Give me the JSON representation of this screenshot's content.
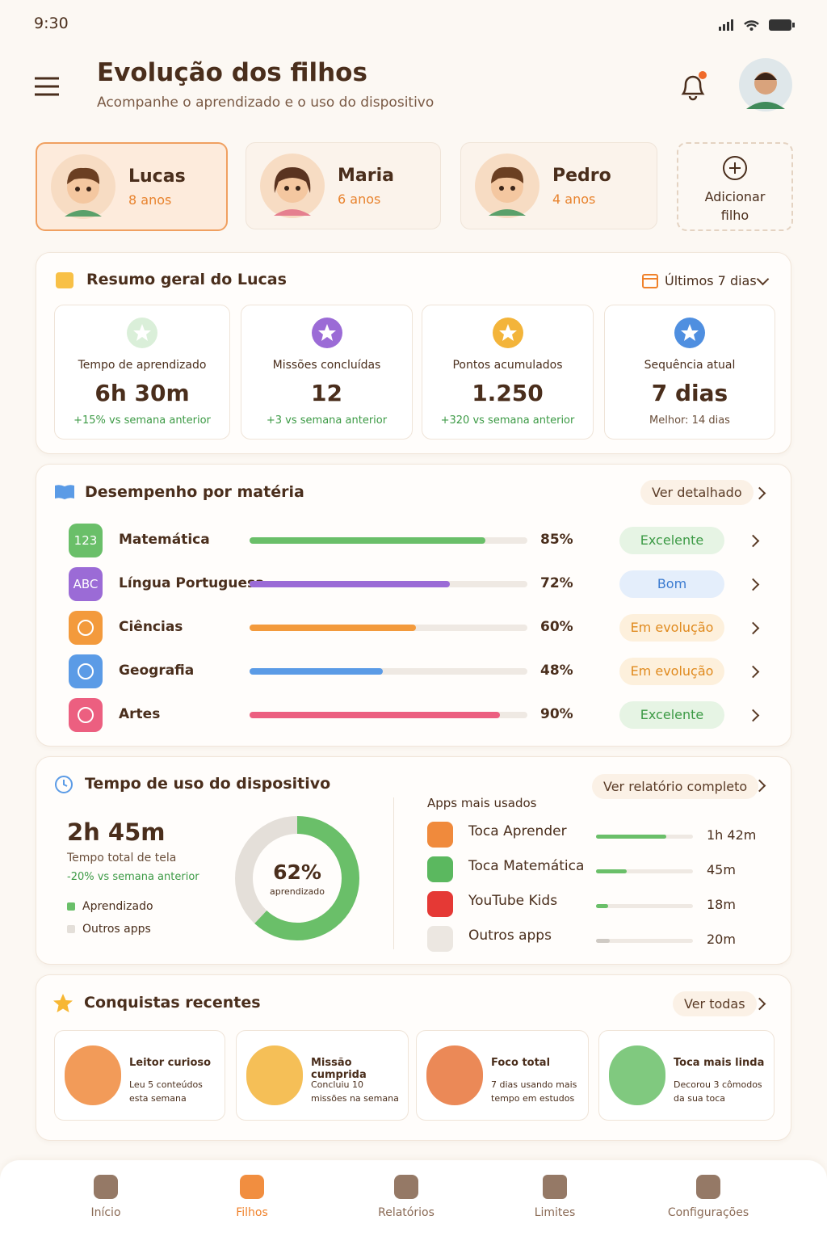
{
  "status_bar": {
    "time": "9:30"
  },
  "header": {
    "title": "Evolução dos filhos",
    "subtitle": "Acompanhe o aprendizado e o uso do dispositivo"
  },
  "children": [
    {
      "name": "Lucas",
      "age": "8 anos"
    },
    {
      "name": "Maria",
      "age": "6 anos"
    },
    {
      "name": "Pedro",
      "age": "4 anos"
    }
  ],
  "add_child": "Adicionar filho",
  "summary": {
    "title": "Resumo geral do Lucas",
    "period": "Últimos 7 dias",
    "stats": [
      {
        "label": "Tempo de aprendizado",
        "value": "6h 30m",
        "note": "+15% vs semana anterior"
      },
      {
        "label": "Missões concluídas",
        "value": "12",
        "note": "+3 vs semana anterior"
      },
      {
        "label": "Pontos acumulados",
        "value": "1.250",
        "note": "+320 vs semana anterior"
      },
      {
        "label": "Sequência atual",
        "value": "7 dias",
        "note": "Melhor: 14 dias"
      }
    ]
  },
  "subjects": {
    "title": "Desempenho por matéria",
    "link": "Ver detalhado",
    "items": [
      {
        "icon": "123",
        "name": "Matemática",
        "value": 85,
        "label": "85%",
        "status": "Excelente",
        "color": "#6abf69",
        "status_color": "#3c9a45",
        "status_bg": "#e6f4e4"
      },
      {
        "icon": "ABC",
        "name": "Língua Portuguesa",
        "value": 72,
        "label": "72%",
        "status": "Bom",
        "color": "#9b6bd6",
        "status_color": "#3b7bd0",
        "status_bg": "#e4eefb"
      },
      {
        "name": "Ciências",
        "value": 60,
        "label": "60%",
        "status": "Em evolução",
        "color": "#f39a3c",
        "status_color": "#e08a1e",
        "status_bg": "#fdf0dc"
      },
      {
        "name": "Geografia",
        "value": 48,
        "label": "48%",
        "status": "Em evolução",
        "color": "#5b9be6",
        "status_color": "#e08a1e",
        "status_bg": "#fdf0dc"
      },
      {
        "name": "Artes",
        "value": 90,
        "label": "90%",
        "status": "Excelente",
        "color": "#ec5f80",
        "status_color": "#3c9a45",
        "status_bg": "#e6f4e4"
      }
    ]
  },
  "device": {
    "title": "Tempo de uso do dispositivo",
    "link": "Ver relatório completo",
    "total": "2h 45m",
    "total_label": "Tempo total de tela",
    "change": "-20% vs semana anterior",
    "legend": [
      "Aprendizado",
      "Outros apps"
    ],
    "donut": {
      "value": 62,
      "label": "62%",
      "caption": "aprendizado"
    },
    "apps_title": "Apps mais usados",
    "apps": [
      {
        "name": "Toca Aprender",
        "time": "1h 42m",
        "minutes": 102,
        "color": "#6abf69"
      },
      {
        "name": "Toca Matemática",
        "time": "45m",
        "minutes": 45,
        "color": "#6abf69"
      },
      {
        "name": "YouTube Kids",
        "time": "18m",
        "minutes": 18,
        "color": "#6abf69"
      },
      {
        "name": "Outros apps",
        "time": "20m",
        "minutes": 20,
        "color": "#cfcac4"
      }
    ]
  },
  "achievements": {
    "title": "Conquistas recentes",
    "link": "Ver todas",
    "items": [
      {
        "title": "Leitor curioso",
        "text": "Leu 5 conteúdos esta semana"
      },
      {
        "title": "Missão cumprida",
        "text": "Concluiu 10 missões na semana"
      },
      {
        "title": "Foco total",
        "text": "7 dias usando mais tempo em estudos"
      },
      {
        "title": "Toca mais linda",
        "text": "Decorou 3 cômodos da sua toca"
      }
    ]
  },
  "nav": [
    "Início",
    "Filhos",
    "Relatórios",
    "Limites",
    "Configurações"
  ]
}
